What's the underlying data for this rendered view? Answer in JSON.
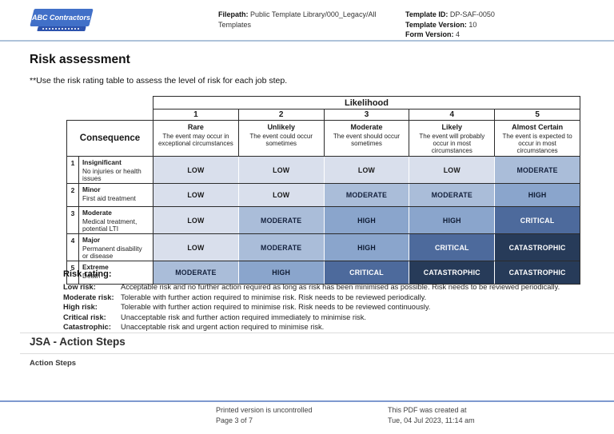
{
  "header": {
    "logo_text": "ABC Contractors",
    "filepath_label": "Filepath:",
    "filepath_value": "Public Template Library/000_Legacy/All Templates",
    "template_id_label": "Template ID:",
    "template_id_value": "DP-SAF-0050",
    "template_version_label": "Template Version:",
    "template_version_value": "10",
    "form_version_label": "Form Version:",
    "form_version_value": "4"
  },
  "page": {
    "title": "Risk assessment",
    "subtitle": "**Use the risk rating table to assess the level of risk for each job step."
  },
  "matrix": {
    "likelihood_label": "Likelihood",
    "consequence_label": "Consequence",
    "likelihood_levels": [
      {
        "num": "1",
        "name": "Rare",
        "desc": "The event may occur in exceptional circumstances"
      },
      {
        "num": "2",
        "name": "Unlikely",
        "desc": "The event could occur sometimes"
      },
      {
        "num": "3",
        "name": "Moderate",
        "desc": "The event should occur sometimes"
      },
      {
        "num": "4",
        "name": "Likely",
        "desc": "The event will probably occur in most circumstances"
      },
      {
        "num": "5",
        "name": "Almost Certain",
        "desc": "The event is expected to occur in most circumstances"
      }
    ],
    "consequence_rows": [
      {
        "num": "1",
        "name": "Insignificant",
        "desc": "No injuries or health issues",
        "ratings": [
          "LOW",
          "LOW",
          "LOW",
          "LOW",
          "MODERATE"
        ]
      },
      {
        "num": "2",
        "name": "Minor",
        "desc": "First aid treatment",
        "ratings": [
          "LOW",
          "LOW",
          "MODERATE",
          "MODERATE",
          "HIGH"
        ]
      },
      {
        "num": "3",
        "name": "Moderate",
        "desc": "Medical treatment, potential LTI",
        "ratings": [
          "LOW",
          "MODERATE",
          "HIGH",
          "HIGH",
          "CRITICAL"
        ]
      },
      {
        "num": "4",
        "name": "Major",
        "desc": "Permanent disability or disease",
        "ratings": [
          "LOW",
          "MODERATE",
          "HIGH",
          "CRITICAL",
          "CATASTROPHIC"
        ]
      },
      {
        "num": "5",
        "name": "Extreme",
        "desc": "Death",
        "ratings": [
          "MODERATE",
          "HIGH",
          "CRITICAL",
          "CATASTROPHIC",
          "CATASTROPHIC"
        ]
      }
    ],
    "rating_colors": {
      "LOW": {
        "bg": "#d9dfec",
        "fg": "#1a1a1a"
      },
      "MODERATE": {
        "bg": "#aabdd9",
        "fg": "#14213d"
      },
      "HIGH": {
        "bg": "#8aa5cc",
        "fg": "#0e1b33"
      },
      "CRITICAL": {
        "bg": "#4d6a9c",
        "fg": "#ffffff"
      },
      "CATASTROPHIC": {
        "bg": "#273b59",
        "fg": "#ffffff"
      }
    }
  },
  "risk_rating": {
    "title": "Risk rating:",
    "items": [
      {
        "label": "Low risk:",
        "desc": "Acceptable risk and no further action required as long as risk has been minimised as possible. Risk needs to be reviewed periodically."
      },
      {
        "label": "Moderate risk:",
        "desc": "Tolerable with further action required to minimise risk.  Risk needs to be reviewed periodically."
      },
      {
        "label": "High risk:",
        "desc": "Tolerable with further action required to minimise risk. Risk needs to be reviewed continuously."
      },
      {
        "label": "Critical risk:",
        "desc": "Unacceptable risk and further action required immediately to minimise risk."
      },
      {
        "label": "Catastrophic:",
        "desc": "Unacceptable risk and urgent action required to minimise risk."
      }
    ]
  },
  "jsa": {
    "title": "JSA - Action Steps",
    "subtitle": "Action Steps"
  },
  "footer": {
    "left_line1": "Printed version is uncontrolled",
    "left_line2": "Page 3 of 7",
    "right_line1": "This PDF was created at",
    "right_line2": "Tue, 04 Jul 2023, 11:14 am"
  },
  "colors": {
    "logo_blue": "#4170c8",
    "logo_dark_blue": "#2d53ae",
    "header_rule": "#aec3da",
    "footer_rule": "#7e99cf",
    "section_rule": "#dcdcdc",
    "table_border": "#2b2b2b"
  }
}
